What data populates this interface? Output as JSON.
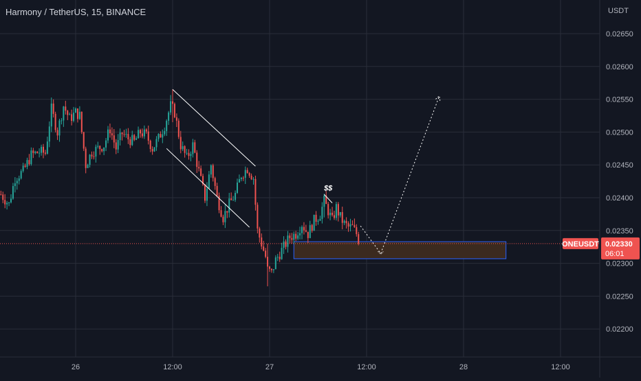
{
  "header": {
    "title": "Harmony / TetherUS, 15, BINANCE"
  },
  "colors": {
    "background": "#131722",
    "grid": "#2a2e39",
    "bullish": "#26a69a",
    "bearish": "#ef5350",
    "current_price_line": "#ef5350",
    "zone_border": "#2962ff",
    "zone_fill": "#3b2a1f",
    "drawings": "#ffffff"
  },
  "chart_data": {
    "type": "candlestick",
    "symbol": "ONEUSDT",
    "interval": "15",
    "exchange": "BINANCE",
    "y_unit": "USDT",
    "ylim": [
      0.0216,
      0.0271
    ],
    "y_ticks": [
      "0.02650",
      "0.02600",
      "0.02550",
      "0.02500",
      "0.02450",
      "0.02400",
      "0.02350",
      "0.02300",
      "0.02250",
      "0.02200"
    ],
    "x_ticks": [
      {
        "label": "26",
        "t": 0
      },
      {
        "label": "12:00",
        "t": 48
      },
      {
        "label": "27",
        "t": 96
      },
      {
        "label": "12:00",
        "t": 144
      },
      {
        "label": "28",
        "t": 192
      },
      {
        "label": "12:00",
        "t": 240
      }
    ],
    "grid": true,
    "current_price": {
      "symbol": "ONEUSDT",
      "value": "0.02330",
      "countdown": "06:01"
    },
    "candle_start_t": -37,
    "anchors": [
      [
        -37,
        0.02405
      ],
      [
        -33,
        0.0239
      ],
      [
        -30,
        0.0243
      ],
      [
        -26,
        0.0244
      ],
      [
        -22,
        0.02465
      ],
      [
        -18,
        0.0247
      ],
      [
        -15,
        0.02468
      ],
      [
        -12,
        0.02535
      ],
      [
        -9,
        0.025
      ],
      [
        -6,
        0.0254
      ],
      [
        -3,
        0.0252
      ],
      [
        0,
        0.0253
      ],
      [
        2,
        0.02525
      ],
      [
        5,
        0.0245
      ],
      [
        8,
        0.0247
      ],
      [
        11,
        0.02475
      ],
      [
        14,
        0.0248
      ],
      [
        17,
        0.02505
      ],
      [
        20,
        0.02475
      ],
      [
        23,
        0.02498
      ],
      [
        26,
        0.0249
      ],
      [
        29,
        0.02485
      ],
      [
        32,
        0.025
      ],
      [
        35,
        0.02495
      ],
      [
        38,
        0.02475
      ],
      [
        41,
        0.0249
      ],
      [
        44,
        0.0251
      ],
      [
        47,
        0.0254
      ],
      [
        49,
        0.0253
      ],
      [
        52,
        0.0248
      ],
      [
        55,
        0.0246
      ],
      [
        58,
        0.0248
      ],
      [
        61,
        0.0244
      ],
      [
        64,
        0.024
      ],
      [
        67,
        0.0245
      ],
      [
        70,
        0.024
      ],
      [
        73,
        0.0237
      ],
      [
        76,
        0.0239
      ],
      [
        79,
        0.02405
      ],
      [
        82,
        0.02435
      ],
      [
        85,
        0.02445
      ],
      [
        88,
        0.0243
      ],
      [
        90,
        0.0235
      ],
      [
        92,
        0.0233
      ],
      [
        94,
        0.0231
      ],
      [
        95,
        0.0229
      ],
      [
        97,
        0.02285
      ],
      [
        99,
        0.02305
      ],
      [
        101,
        0.02315
      ],
      [
        103,
        0.02325
      ],
      [
        106,
        0.0234
      ],
      [
        109,
        0.02345
      ],
      [
        112,
        0.0236
      ],
      [
        115,
        0.02345
      ],
      [
        118,
        0.02365
      ],
      [
        121,
        0.02375
      ],
      [
        123,
        0.02395
      ],
      [
        125,
        0.0238
      ],
      [
        127,
        0.02365
      ],
      [
        129,
        0.02385
      ],
      [
        131,
        0.0237
      ],
      [
        133,
        0.0236
      ],
      [
        135,
        0.02355
      ],
      [
        137,
        0.02355
      ],
      [
        139,
        0.02345
      ],
      [
        140,
        0.0233
      ]
    ],
    "highlights": [
      {
        "t": 48,
        "high": 0.02565,
        "low": 0.02515
      },
      {
        "t": 95,
        "high": 0.0233,
        "low": 0.02265
      },
      {
        "t": 123,
        "high": 0.02405,
        "low": 0.0237
      }
    ],
    "drawings": {
      "channel_upper": [
        [
          48,
          0.02565
        ],
        [
          89,
          0.02448
        ]
      ],
      "channel_lower": [
        [
          45,
          0.02475
        ],
        [
          86,
          0.02355
        ]
      ],
      "zone_top": 0.02333,
      "zone_bottom": 0.02307,
      "zone_t_start": 108,
      "zone_t_end": 213,
      "projection": [
        [
          141,
          0.02357
        ],
        [
          151,
          0.02315
        ],
        [
          180,
          0.02555
        ]
      ],
      "peak_line": [
        [
          123,
          0.02405
        ],
        [
          127,
          0.02392
        ]
      ],
      "peak_marker": {
        "text": "$$",
        "t": 125,
        "price": 0.02407
      }
    }
  }
}
